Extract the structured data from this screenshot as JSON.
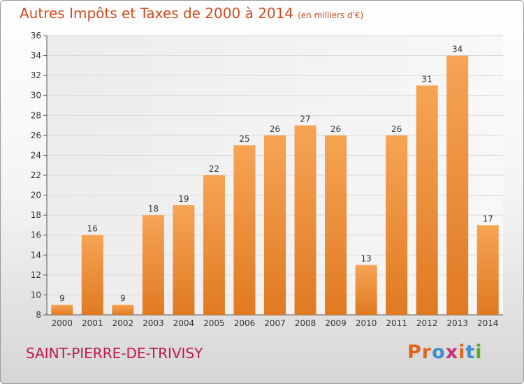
{
  "header": {
    "title": "Autres Impôts et Taxes de 2000 à 2014",
    "unit": "(en milliers d'€)"
  },
  "footer": {
    "commune": "SAINT-PIERRE-DE-TRIVISY",
    "logo_text": "Proxiti",
    "logo_colors": [
      "#e0671a",
      "#e0671a",
      "#3a8fd0",
      "#c83280",
      "#e0671a",
      "#3a8fd0",
      "#5aa82c"
    ]
  },
  "chart_data": {
    "type": "bar",
    "title": "Autres Impôts et Taxes de 2000 à 2014",
    "subtitle": "(en milliers d'€)",
    "xlabel": "",
    "ylabel": "",
    "categories": [
      "2000",
      "2001",
      "2002",
      "2003",
      "2004",
      "2005",
      "2006",
      "2007",
      "2008",
      "2009",
      "2010",
      "2011",
      "2012",
      "2013",
      "2014"
    ],
    "values": [
      9,
      16,
      9,
      18,
      19,
      22,
      25,
      26,
      27,
      26,
      13,
      26,
      31,
      34,
      17
    ],
    "ylim": [
      8,
      36
    ],
    "yticks": [
      8,
      10,
      12,
      14,
      16,
      18,
      20,
      22,
      24,
      26,
      28,
      30,
      32,
      34,
      36
    ],
    "grid": true,
    "bar_color_top": "#f6a455",
    "bar_color_bottom": "#e07a22",
    "grid_color": "#d9d9d9"
  }
}
